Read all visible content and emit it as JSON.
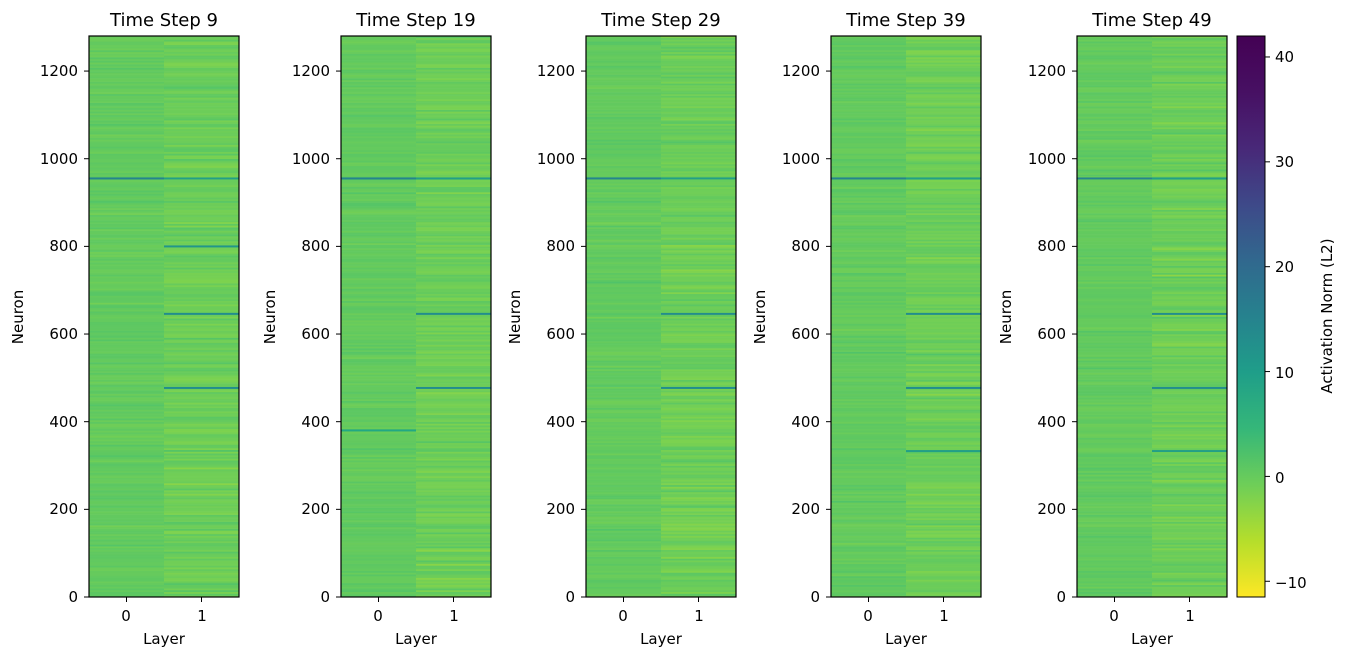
{
  "chart_data": [
    {
      "type": "heatmap",
      "title": "Time Step 9",
      "xlabel": "Layer",
      "ylabel": "Neuron",
      "x_categories": [
        "0",
        "1"
      ],
      "y_range": [
        0,
        1280
      ],
      "y_ticks": [
        0,
        200,
        400,
        600,
        800,
        1000,
        1200
      ],
      "column_baseline": [
        1.5,
        0.5
      ],
      "highlight_rows": [
        {
          "layer": "0",
          "neuron": 955,
          "value": 18
        },
        {
          "layer": "1",
          "neuron": 955,
          "value": 12
        },
        {
          "layer": "1",
          "neuron": 800,
          "value": 14
        },
        {
          "layer": "1",
          "neuron": 646,
          "value": 16
        },
        {
          "layer": "1",
          "neuron": 477,
          "value": 16
        }
      ]
    },
    {
      "type": "heatmap",
      "title": "Time Step 19",
      "xlabel": "Layer",
      "ylabel": "Neuron",
      "x_categories": [
        "0",
        "1"
      ],
      "y_range": [
        0,
        1280
      ],
      "y_ticks": [
        0,
        200,
        400,
        600,
        800,
        1000,
        1200
      ],
      "column_baseline": [
        1.5,
        0.5
      ],
      "highlight_rows": [
        {
          "layer": "0",
          "neuron": 955,
          "value": 18
        },
        {
          "layer": "0",
          "neuron": 380,
          "value": 10
        },
        {
          "layer": "1",
          "neuron": 955,
          "value": 12
        },
        {
          "layer": "1",
          "neuron": 646,
          "value": 16
        },
        {
          "layer": "1",
          "neuron": 477,
          "value": 16
        }
      ]
    },
    {
      "type": "heatmap",
      "title": "Time Step 29",
      "xlabel": "Layer",
      "ylabel": "Neuron",
      "x_categories": [
        "0",
        "1"
      ],
      "y_range": [
        0,
        1280
      ],
      "y_ticks": [
        0,
        200,
        400,
        600,
        800,
        1000,
        1200
      ],
      "column_baseline": [
        1.5,
        0.5
      ],
      "highlight_rows": [
        {
          "layer": "0",
          "neuron": 955,
          "value": 18
        },
        {
          "layer": "1",
          "neuron": 955,
          "value": 12
        },
        {
          "layer": "1",
          "neuron": 646,
          "value": 16
        },
        {
          "layer": "1",
          "neuron": 477,
          "value": 16
        }
      ]
    },
    {
      "type": "heatmap",
      "title": "Time Step 39",
      "xlabel": "Layer",
      "ylabel": "Neuron",
      "x_categories": [
        "0",
        "1"
      ],
      "y_range": [
        0,
        1280
      ],
      "y_ticks": [
        0,
        200,
        400,
        600,
        800,
        1000,
        1200
      ],
      "column_baseline": [
        1.5,
        0.5
      ],
      "highlight_rows": [
        {
          "layer": "0",
          "neuron": 955,
          "value": 18
        },
        {
          "layer": "1",
          "neuron": 955,
          "value": 12
        },
        {
          "layer": "1",
          "neuron": 646,
          "value": 16
        },
        {
          "layer": "1",
          "neuron": 477,
          "value": 16
        },
        {
          "layer": "1",
          "neuron": 333,
          "value": 12
        }
      ]
    },
    {
      "type": "heatmap",
      "title": "Time Step 49",
      "xlabel": "Layer",
      "ylabel": "Neuron",
      "x_categories": [
        "0",
        "1"
      ],
      "y_range": [
        0,
        1280
      ],
      "y_ticks": [
        0,
        200,
        400,
        600,
        800,
        1000,
        1200
      ],
      "column_baseline": [
        1.5,
        0.5
      ],
      "highlight_rows": [
        {
          "layer": "0",
          "neuron": 955,
          "value": 18
        },
        {
          "layer": "1",
          "neuron": 955,
          "value": 12
        },
        {
          "layer": "1",
          "neuron": 646,
          "value": 16
        },
        {
          "layer": "1",
          "neuron": 477,
          "value": 16
        },
        {
          "layer": "1",
          "neuron": 333,
          "value": 12
        }
      ]
    }
  ],
  "colorbar": {
    "label": "Activation Norm (L2)",
    "colormap": "viridis_r",
    "range": [
      -11.5,
      42
    ],
    "ticks": [
      -10,
      0,
      10,
      20,
      30,
      40
    ],
    "tick_labels": [
      "−10",
      "0",
      "10",
      "20",
      "30",
      "40"
    ]
  }
}
